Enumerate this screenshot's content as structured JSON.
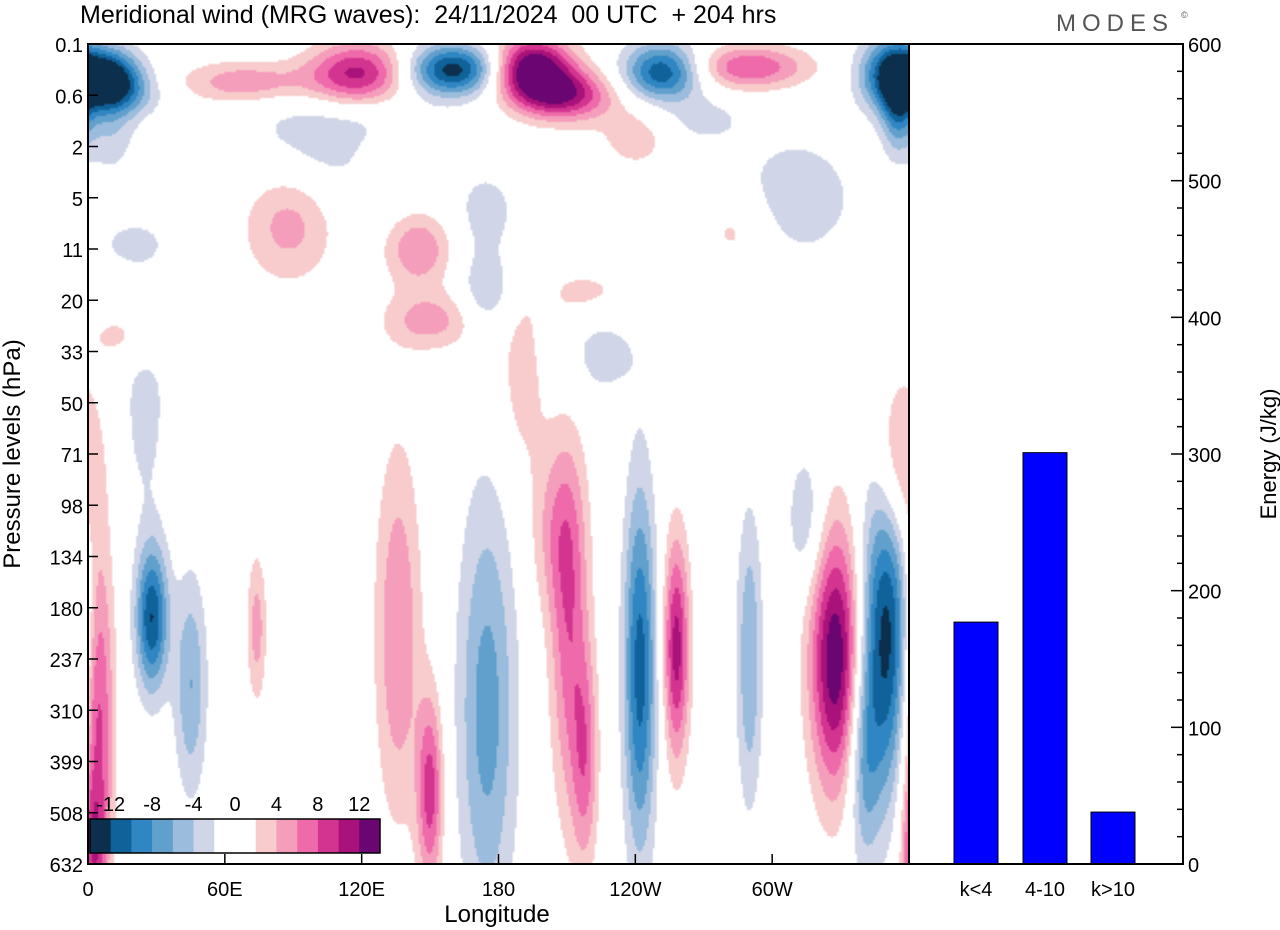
{
  "header": {
    "title": "Meridional wind (MRG waves):  24/11/2024  00 UTC  + 204 hrs",
    "logo": "MODES",
    "logo_mark": "©"
  },
  "chart_data": [
    {
      "type": "heatmap",
      "title": "Meridional wind (MRG waves)",
      "xlabel": "Longitude",
      "ylabel": "Pressure levels (hPa)",
      "x_ticks": [
        "0",
        "60E",
        "120E",
        "180",
        "120W",
        "60W"
      ],
      "x_tick_degrees": [
        0,
        60,
        120,
        180,
        240,
        300
      ],
      "x_range_degrees": [
        0,
        360
      ],
      "y_ticks": [
        "0.1",
        "0.6",
        "2",
        "5",
        "11",
        "20",
        "33",
        "50",
        "71",
        "98",
        "134",
        "180",
        "237",
        "310",
        "399",
        "508",
        "632"
      ],
      "colorbar": {
        "labels": [
          "-12",
          "-8",
          "-4",
          "0",
          "4",
          "8",
          "12"
        ],
        "levels": [
          -14,
          -12,
          -10,
          -8,
          -6,
          -4,
          -2,
          0,
          2,
          4,
          6,
          8,
          10,
          12,
          14
        ],
        "colors": [
          "#0c2f4e",
          "#10629a",
          "#2f86c3",
          "#619fcc",
          "#9bbcdc",
          "#d0d6e8",
          "#ffffff",
          "#ffffff",
          "#f8cccc",
          "#f59ebb",
          "#ee6aab",
          "#d3348f",
          "#a8127a",
          "#6a0571"
        ]
      },
      "blobs": [
        {
          "lon": 28,
          "lev": 11.2,
          "value": -12,
          "wx": 5,
          "wy": 1.0
        },
        {
          "lon": 45,
          "lev": 12.5,
          "value": -6,
          "wx": 5,
          "wy": 1.5
        },
        {
          "lon": 4,
          "lev": 13.0,
          "value": 10,
          "wx": 5,
          "wy": 2.5
        },
        {
          "lon": 2,
          "lev": 15.8,
          "value": 6,
          "wx": 4,
          "wy": 1.0
        },
        {
          "lon": 74,
          "lev": 11.4,
          "value": 5,
          "wx": 3,
          "wy": 1.0
        },
        {
          "lon": 136,
          "lev": 11.5,
          "value": 6,
          "wx": 7,
          "wy": 2.5
        },
        {
          "lon": 150,
          "lev": 14.6,
          "value": 9,
          "wx": 4,
          "wy": 1.3
        },
        {
          "lon": 175,
          "lev": 13.0,
          "value": -7,
          "wx": 9,
          "wy": 3.0
        },
        {
          "lon": 211,
          "lev": 11.5,
          "value": 7,
          "wx": 6,
          "wy": 2.5
        },
        {
          "lon": 218,
          "lev": 14.0,
          "value": 6,
          "wx": 4,
          "wy": 1.5
        },
        {
          "lon": 242,
          "lev": 12.2,
          "value": -11,
          "wx": 5,
          "wy": 2.5
        },
        {
          "lon": 258,
          "lev": 11.8,
          "value": 11,
          "wx": 4,
          "wy": 1.5
        },
        {
          "lon": 290,
          "lev": 12.0,
          "value": -6,
          "wx": 4,
          "wy": 2.0
        },
        {
          "lon": 328,
          "lev": 12.0,
          "value": 14,
          "wx": 8,
          "wy": 1.8
        },
        {
          "lon": 350,
          "lev": 11.5,
          "value": -13,
          "wx": 8,
          "wy": 2.2
        },
        {
          "lon": 340,
          "lev": 14.0,
          "value": -6,
          "wx": 5,
          "wy": 1.5
        },
        {
          "lon": 205,
          "lev": 9.5,
          "value": 4,
          "wx": 8,
          "wy": 1.2
        },
        {
          "lon": 315,
          "lev": 9.3,
          "value": -4,
          "wx": 6,
          "wy": 1.0
        },
        {
          "lon": 355,
          "lev": 8.2,
          "value": 6,
          "wx": 7,
          "wy": 1.2
        },
        {
          "lon": 25,
          "lev": 7.0,
          "value": -3,
          "wx": 7,
          "wy": 1.5
        },
        {
          "lon": 20,
          "lev": 5.7,
          "value": 3,
          "wx": 14,
          "wy": 0.4
        },
        {
          "lon": 190,
          "lev": 6.5,
          "value": 3,
          "wx": 8,
          "wy": 1.4
        },
        {
          "lon": 225,
          "lev": 6.0,
          "value": -3,
          "wx": 12,
          "wy": 0.7
        },
        {
          "lon": 150,
          "lev": 5.4,
          "value": 5,
          "wx": 14,
          "wy": 0.4
        },
        {
          "lon": 175,
          "lev": 4.8,
          "value": -4,
          "wx": 8,
          "wy": 0.5
        },
        {
          "lon": 220,
          "lev": 4.9,
          "value": 3,
          "wx": 14,
          "wy": 0.4
        },
        {
          "lon": 88,
          "lev": 3.5,
          "value": 5,
          "wx": 14,
          "wy": 0.8
        },
        {
          "lon": 145,
          "lev": 4.0,
          "value": 6,
          "wx": 10,
          "wy": 0.5
        },
        {
          "lon": 20,
          "lev": 3.9,
          "value": -3,
          "wx": 10,
          "wy": 0.3
        },
        {
          "lon": 175,
          "lev": 3.3,
          "value": -3,
          "wx": 10,
          "wy": 0.6
        },
        {
          "lon": 285,
          "lev": 3.6,
          "value": 3,
          "wx": 12,
          "wy": 0.6
        },
        {
          "lon": 310,
          "lev": 3.0,
          "value": -4,
          "wx": 18,
          "wy": 0.8
        },
        {
          "lon": 135,
          "lev": 2.2,
          "value": 4,
          "wx": 12,
          "wy": 0.4
        },
        {
          "lon": 110,
          "lev": 1.7,
          "value": -4,
          "wx": 28,
          "wy": 0.9
        },
        {
          "lon": 240,
          "lev": 1.8,
          "value": 3,
          "wx": 12,
          "wy": 0.5
        },
        {
          "lon": 270,
          "lev": 1.5,
          "value": -3,
          "wx": 12,
          "wy": 0.3
        },
        {
          "lon": 355,
          "lev": 1.3,
          "value": -7,
          "wx": 5,
          "wy": 0.6
        },
        {
          "lon": 10,
          "lev": 1.4,
          "value": -4,
          "wx": 8,
          "wy": 0.8
        },
        {
          "lon": 210,
          "lev": 1.0,
          "value": 10,
          "wx": 14,
          "wy": 0.35
        },
        {
          "lon": 195,
          "lev": 0.5,
          "value": 15,
          "wx": 12,
          "wy": 0.45
        },
        {
          "lon": 160,
          "lev": 0.5,
          "value": -13,
          "wx": 14,
          "wy": 0.35
        },
        {
          "lon": 118,
          "lev": 0.6,
          "value": 12,
          "wx": 16,
          "wy": 0.45
        },
        {
          "lon": 70,
          "lev": 0.75,
          "value": 6,
          "wx": 20,
          "wy": 0.3
        },
        {
          "lon": 10,
          "lev": 0.6,
          "value": -10,
          "wx": 10,
          "wy": 0.35
        },
        {
          "lon": 15,
          "lev": 1.0,
          "value": -5,
          "wx": 12,
          "wy": 0.3
        },
        {
          "lon": 252,
          "lev": 0.55,
          "value": -12,
          "wx": 12,
          "wy": 0.4
        },
        {
          "lon": 290,
          "lev": 0.45,
          "value": 8,
          "wx": 18,
          "wy": 0.3
        },
        {
          "lon": 353,
          "lev": 0.6,
          "value": -13,
          "wx": 10,
          "wy": 0.5
        }
      ]
    },
    {
      "type": "bar",
      "categories": [
        "k<4",
        "4-10",
        "k>10"
      ],
      "values": [
        177,
        301,
        38
      ],
      "ylabel": "Energy (J/kg)",
      "ylim": [
        0,
        600
      ],
      "y_ticks": [
        "0",
        "100",
        "200",
        "300",
        "400",
        "500",
        "600"
      ],
      "bar_color": "#0000ff"
    }
  ]
}
